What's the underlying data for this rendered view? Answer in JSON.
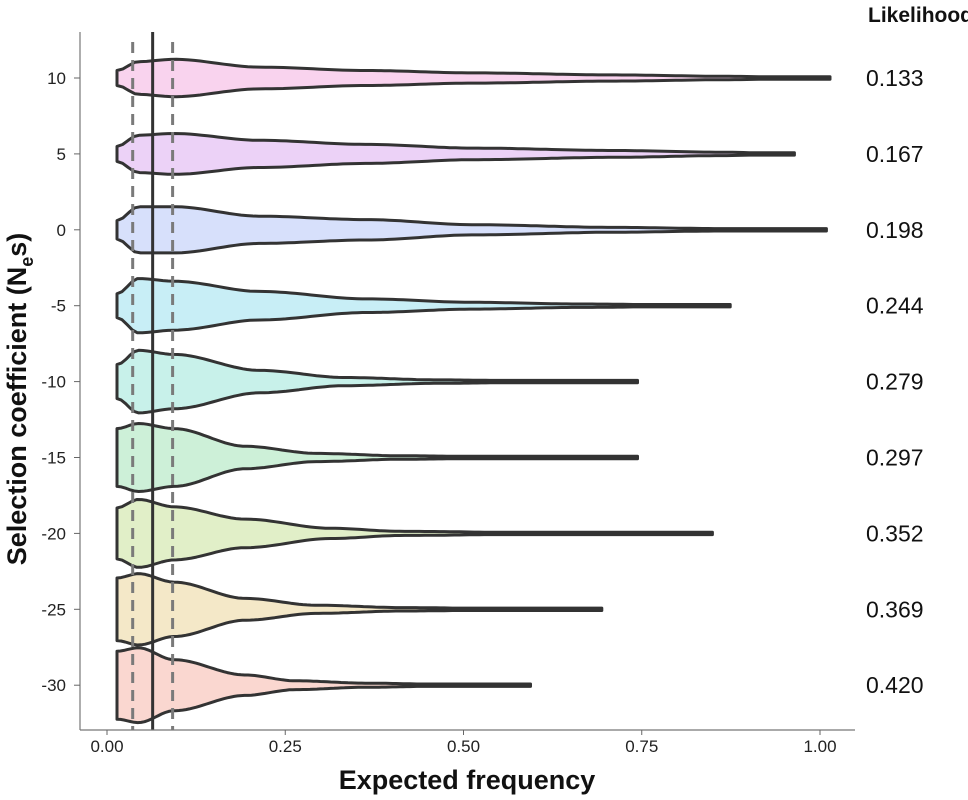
{
  "chart_data": {
    "type": "violin",
    "xlabel": "Expected frequency",
    "ylabel_main": "Selection coefficient (N",
    "ylabel_sub": "e",
    "ylabel_tail": "s)",
    "likelihood_header": "Likelihood",
    "xlim": [
      -0.04,
      1.04
    ],
    "x_ticks": [
      "0.00",
      "0.25",
      "0.50",
      "0.75",
      "1.00"
    ],
    "x_tick_values": [
      0,
      0.25,
      0.5,
      0.75,
      1.0
    ],
    "reference_lines": {
      "solid": 0.05,
      "dashed": [
        0.022,
        0.078
      ]
    },
    "series": [
      {
        "label": "10",
        "likelihood": "0.133",
        "color": "#f9d3ee",
        "max": 1.0,
        "profile": [
          [
            0.0,
            0.22
          ],
          [
            0.03,
            0.48
          ],
          [
            0.08,
            0.55
          ],
          [
            0.2,
            0.32
          ],
          [
            0.35,
            0.22
          ],
          [
            0.5,
            0.15
          ],
          [
            0.7,
            0.09
          ],
          [
            0.85,
            0.05
          ],
          [
            0.97,
            0.02
          ],
          [
            1.0,
            0.0
          ]
        ]
      },
      {
        "label": "5",
        "likelihood": "0.167",
        "color": "#ecd2f7",
        "max": 0.95,
        "profile": [
          [
            0.0,
            0.22
          ],
          [
            0.03,
            0.55
          ],
          [
            0.08,
            0.6
          ],
          [
            0.2,
            0.4
          ],
          [
            0.35,
            0.28
          ],
          [
            0.5,
            0.17
          ],
          [
            0.7,
            0.1
          ],
          [
            0.85,
            0.05
          ],
          [
            0.95,
            0.0
          ]
        ]
      },
      {
        "label": "0",
        "likelihood": "0.198",
        "color": "#d7e0fb",
        "max": 0.995,
        "profile": [
          [
            0.0,
            0.27
          ],
          [
            0.03,
            0.68
          ],
          [
            0.08,
            0.68
          ],
          [
            0.2,
            0.4
          ],
          [
            0.35,
            0.3
          ],
          [
            0.5,
            0.15
          ],
          [
            0.7,
            0.07
          ],
          [
            0.85,
            0.035
          ],
          [
            0.995,
            0.0
          ]
        ]
      },
      {
        "label": "-5",
        "likelihood": "0.244",
        "color": "#c8eef6",
        "max": 0.86,
        "profile": [
          [
            0.0,
            0.35
          ],
          [
            0.03,
            0.8
          ],
          [
            0.08,
            0.72
          ],
          [
            0.2,
            0.42
          ],
          [
            0.35,
            0.2
          ],
          [
            0.5,
            0.1
          ],
          [
            0.65,
            0.05
          ],
          [
            0.86,
            0.0
          ]
        ]
      },
      {
        "label": "-10",
        "likelihood": "0.279",
        "color": "#c8f1ea",
        "max": 0.73,
        "profile": [
          [
            0.0,
            0.5
          ],
          [
            0.03,
            0.92
          ],
          [
            0.08,
            0.8
          ],
          [
            0.2,
            0.33
          ],
          [
            0.32,
            0.12
          ],
          [
            0.45,
            0.05
          ],
          [
            0.6,
            0.02
          ],
          [
            0.73,
            0.0
          ]
        ]
      },
      {
        "label": "-15",
        "likelihood": "0.297",
        "color": "#cdf0d8",
        "max": 0.73,
        "profile": [
          [
            0.0,
            0.85
          ],
          [
            0.03,
            1.0
          ],
          [
            0.08,
            0.85
          ],
          [
            0.18,
            0.33
          ],
          [
            0.28,
            0.12
          ],
          [
            0.4,
            0.05
          ],
          [
            0.55,
            0.02
          ],
          [
            0.73,
            0.0
          ]
        ]
      },
      {
        "label": "-20",
        "likelihood": "0.352",
        "color": "#e1efc8",
        "max": 0.835,
        "profile": [
          [
            0.0,
            0.75
          ],
          [
            0.03,
            1.0
          ],
          [
            0.08,
            0.78
          ],
          [
            0.18,
            0.42
          ],
          [
            0.3,
            0.15
          ],
          [
            0.4,
            0.06
          ],
          [
            0.6,
            0.02
          ],
          [
            0.835,
            0.0
          ]
        ]
      },
      {
        "label": "-25",
        "likelihood": "0.369",
        "color": "#f4e8c8",
        "max": 0.68,
        "profile": [
          [
            0.0,
            0.92
          ],
          [
            0.03,
            1.05
          ],
          [
            0.08,
            0.8
          ],
          [
            0.18,
            0.32
          ],
          [
            0.28,
            0.12
          ],
          [
            0.4,
            0.05
          ],
          [
            0.55,
            0.02
          ],
          [
            0.68,
            0.0
          ]
        ]
      },
      {
        "label": "-30",
        "likelihood": "0.420",
        "color": "#fad7d0",
        "max": 0.58,
        "profile": [
          [
            0.0,
            1.0
          ],
          [
            0.03,
            1.1
          ],
          [
            0.08,
            0.75
          ],
          [
            0.18,
            0.3
          ],
          [
            0.25,
            0.13
          ],
          [
            0.35,
            0.06
          ],
          [
            0.45,
            0.03
          ],
          [
            0.58,
            0.0
          ]
        ]
      }
    ]
  }
}
